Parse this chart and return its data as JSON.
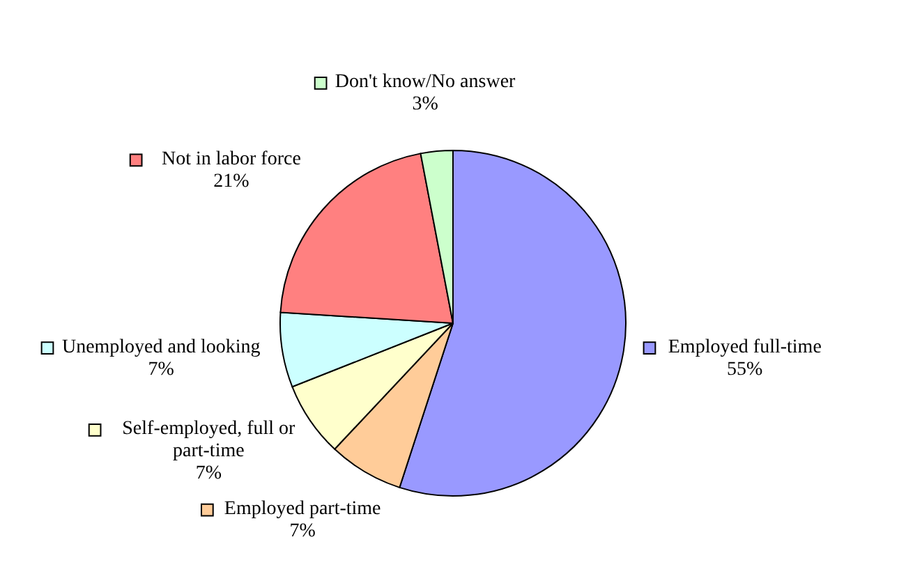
{
  "chart_data": {
    "type": "pie",
    "categories": [
      "Employed full-time",
      "Employed part-time",
      "Self-employed, full or part-time",
      "Unemployed and looking",
      "Not in labor force",
      "Don't know/No answer"
    ],
    "values": [
      55,
      7,
      7,
      7,
      21,
      3
    ],
    "colors": [
      "#9999ff",
      "#ffcc99",
      "#ffffcc",
      "#ccffff",
      "#ff8080",
      "#ccffcc"
    ],
    "value_labels": [
      "55%",
      "7%",
      "7%",
      "7%",
      "21%",
      "3%"
    ],
    "legend": "left"
  }
}
